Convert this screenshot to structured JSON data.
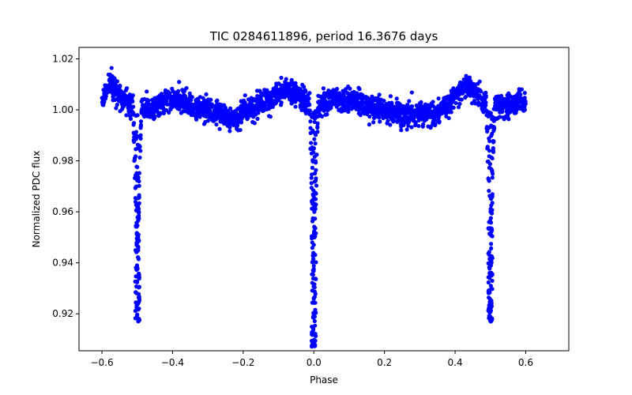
{
  "chart_data": {
    "type": "scatter",
    "title": "TIC 0284611896, period 16.3676 days",
    "xlabel": "Phase",
    "ylabel": "Normalized PDC flux",
    "xlim": [
      -0.665,
      0.722
    ],
    "ylim": [
      0.9055,
      1.0245
    ],
    "xticks": [
      -0.6,
      -0.4,
      -0.2,
      0.0,
      0.2,
      0.4,
      0.6
    ],
    "xtick_labels": [
      "−0.6",
      "−0.4",
      "−0.2",
      "0.0",
      "0.2",
      "0.4",
      "0.6"
    ],
    "yticks": [
      0.92,
      0.94,
      0.96,
      0.98,
      1.0,
      1.02
    ],
    "ytick_labels": [
      "0.92",
      "0.94",
      "0.96",
      "0.98",
      "1.00",
      "1.02"
    ],
    "grid": false,
    "marker_color": "#0000ff",
    "series": [
      {
        "color": "#0000ff",
        "x_range": [
          -0.6,
          0.6
        ],
        "baseline": 1.0,
        "eclipses": [
          {
            "phase": -0.5,
            "min_flux": 0.917
          },
          {
            "phase": 0.0,
            "min_flux": 0.907
          },
          {
            "phase": 0.5,
            "min_flux": 0.917
          }
        ],
        "out_of_eclipse_trend": [
          [
            -0.6,
            1.003
          ],
          [
            -0.58,
            1.01
          ],
          [
            -0.56,
            1.008
          ],
          [
            -0.54,
            1.004
          ],
          [
            -0.52,
            1.002
          ],
          [
            -0.46,
            1.0
          ],
          [
            -0.42,
            1.004
          ],
          [
            -0.38,
            1.004
          ],
          [
            -0.34,
            1.001
          ],
          [
            -0.3,
            1.0
          ],
          [
            -0.26,
            0.998
          ],
          [
            -0.22,
            0.996
          ],
          [
            -0.2,
            0.999
          ],
          [
            -0.16,
            1.002
          ],
          [
            -0.12,
            1.005
          ],
          [
            -0.08,
            1.008
          ],
          [
            -0.04,
            1.006
          ],
          [
            -0.02,
            1.003
          ],
          [
            0.02,
            1.002
          ],
          [
            0.06,
            1.004
          ],
          [
            0.1,
            1.004
          ],
          [
            0.14,
            1.002
          ],
          [
            0.18,
            1.001
          ],
          [
            0.22,
            0.999
          ],
          [
            0.26,
            0.998
          ],
          [
            0.3,
            0.999
          ],
          [
            0.34,
            0.998
          ],
          [
            0.38,
            1.002
          ],
          [
            0.42,
            1.008
          ],
          [
            0.44,
            1.01
          ],
          [
            0.46,
            1.006
          ],
          [
            0.48,
            1.003
          ],
          [
            0.52,
            1.002
          ],
          [
            0.56,
            1.001
          ],
          [
            0.58,
            1.004
          ],
          [
            0.6,
            1.002
          ]
        ],
        "scatter_amplitude": 0.004
      }
    ]
  }
}
